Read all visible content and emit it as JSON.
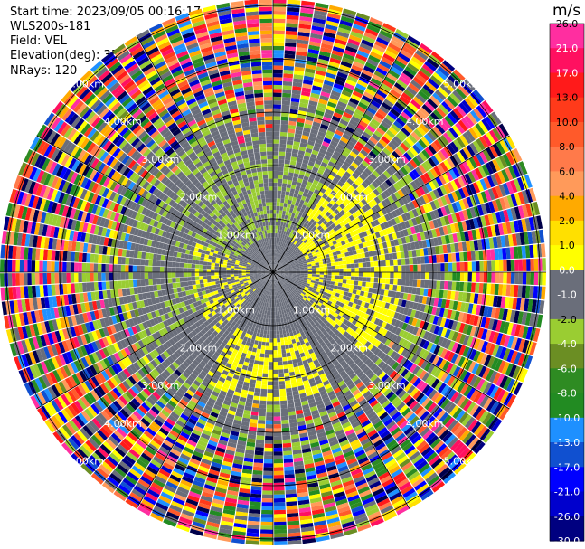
{
  "header": {
    "start_time": "Start time: 2023/09/05 00:16:17",
    "instrument": "WLS200s-181",
    "field": "Field: VEL",
    "elevation": "Elevation(deg): 35.30",
    "nrays": "NRays: 120"
  },
  "colorbar": {
    "unit": "m/s",
    "ticks": [
      "26.0",
      "21.0",
      "17.0",
      "13.0",
      "10.0",
      "8.0",
      "6.0",
      "4.0",
      "2.0",
      "1.0",
      "0.0",
      "-1.0",
      "-2.0",
      "-4.0",
      "-6.0",
      "-8.0",
      "-10.0",
      "-13.0",
      "-17.0",
      "-21.0",
      "-26.0",
      "-30.0"
    ],
    "colors": [
      "#ff2ea0",
      "#ff1060",
      "#ff1a1a",
      "#ff3a1a",
      "#ff5a2a",
      "#ff7a4a",
      "#ff9a5a",
      "#ffaa00",
      "#ffe000",
      "#ffff00",
      "#6a6e7a",
      "#6a6e7a",
      "#9acd32",
      "#6b8e23",
      "#2e8b22",
      "#228b22",
      "#1e90ff",
      "#1050d0",
      "#0000ff",
      "#0000cd",
      "#000080",
      "#00004a"
    ]
  },
  "chart_data": {
    "type": "ppi",
    "field": "VEL",
    "units": "m/s",
    "nrays": 120,
    "range_rings_km": [
      1,
      2,
      3,
      4,
      5
    ],
    "range_ring_labels": [
      "1.00km",
      "2.00km",
      "3.00km",
      "4.00km",
      "5.00km"
    ],
    "clim": [
      -30,
      26
    ],
    "max_range_km": 7.2
  }
}
